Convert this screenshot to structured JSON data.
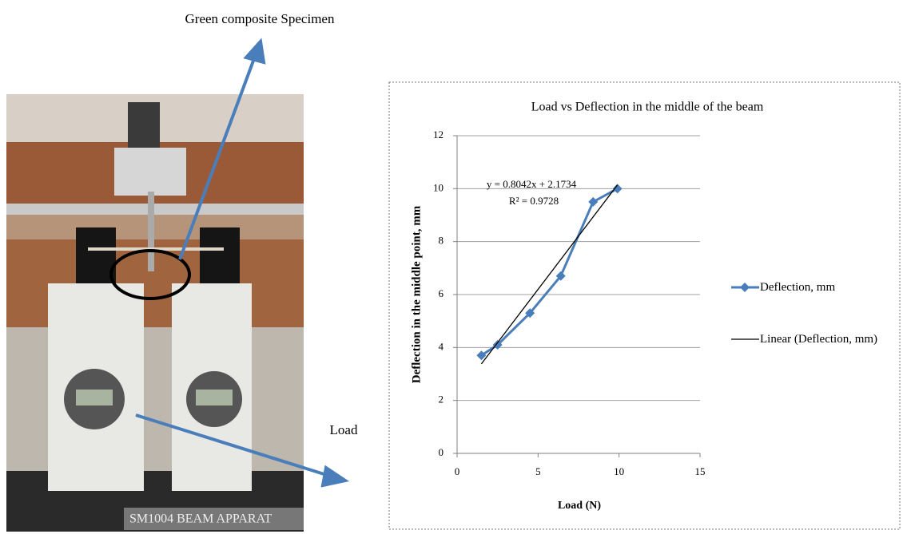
{
  "figure": {
    "specimen_label": "Green composite Specimen",
    "load_label": "Load",
    "apparatus_label": "SM1004 BEAM APPARAT"
  },
  "chart_data": {
    "type": "line",
    "title": "Load vs Deflection in the middle of the beam",
    "x_label": "Load (N)",
    "y_label": "Deflection in the middle point, mm",
    "xlim": [
      0,
      15
    ],
    "xticks": [
      0,
      5,
      10,
      15
    ],
    "ylim": [
      0,
      12
    ],
    "yticks": [
      0,
      2,
      4,
      6,
      8,
      10,
      12
    ],
    "grid": true,
    "series": [
      {
        "name": "Deflection, mm",
        "color": "#4a7ebb",
        "marker": "diamond",
        "x": [
          1.5,
          2.5,
          4.5,
          6.4,
          8.4,
          9.9
        ],
        "values": [
          3.7,
          4.1,
          5.3,
          6.7,
          9.5,
          10.0
        ]
      },
      {
        "name": "Linear (Deflection, mm)",
        "color": "#000000",
        "marker": "none",
        "x": [
          1.5,
          9.9
        ],
        "values": [
          3.38,
          10.14
        ]
      }
    ],
    "annotations": [
      "y = 0.8042x + 2.1734",
      "R² = 0.9728"
    ]
  }
}
